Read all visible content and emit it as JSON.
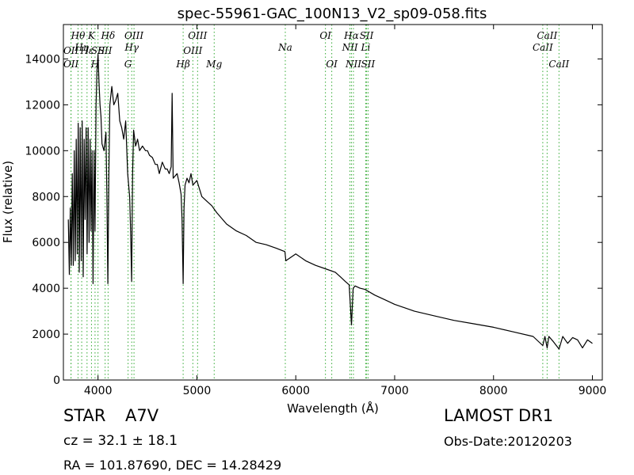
{
  "chart_data": {
    "type": "line",
    "title": "spec-55961-GAC_100N13_V2_sp09-058.fits",
    "xlabel": "Wavelength (Å)",
    "ylabel": "Flux (relative)",
    "xlim": [
      3650,
      9100
    ],
    "ylim": [
      0,
      15500
    ],
    "xticks": [
      4000,
      5000,
      6000,
      7000,
      8000,
      9000
    ],
    "yticks": [
      0,
      2000,
      4000,
      6000,
      8000,
      10000,
      12000,
      14000
    ],
    "grid": false,
    "line_color": "#000000",
    "marker_color": "#33aa33",
    "series": [
      {
        "x": [
          3700,
          3710,
          3720,
          3730,
          3740,
          3750,
          3760,
          3770,
          3780,
          3790,
          3800,
          3810,
          3820,
          3830,
          3840,
          3850,
          3860,
          3870,
          3880,
          3890,
          3900,
          3910,
          3920,
          3930,
          3940,
          3950,
          3960,
          3970,
          3980,
          3990,
          4000,
          4010,
          4020,
          4030,
          4040,
          4060,
          4080,
          4090,
          4100,
          4110,
          4120,
          4140,
          4160,
          4180,
          4200,
          4220,
          4240,
          4260,
          4280,
          4300,
          4320,
          4330,
          4340,
          4350,
          4360,
          4380,
          4400,
          4420,
          4450,
          4480,
          4500,
          4520,
          4550,
          4580,
          4600,
          4620,
          4650,
          4680,
          4700,
          4720,
          4740,
          4750,
          4760,
          4780,
          4800,
          4820,
          4840,
          4850,
          4861,
          4870,
          4880,
          4900,
          4920,
          4940,
          4960,
          5000,
          5050,
          5100,
          5150,
          5200,
          5300,
          5400,
          5500,
          5600,
          5700,
          5800,
          5890,
          5900,
          6000,
          6100,
          6200,
          6300,
          6400,
          6450,
          6500,
          6540,
          6563,
          6580,
          6600,
          6650,
          6700,
          6800,
          6900,
          7000,
          7200,
          7400,
          7600,
          7800,
          8000,
          8200,
          8400,
          8498,
          8520,
          8542,
          8560,
          8600,
          8662,
          8700,
          8750,
          8800,
          8850,
          8900,
          8950,
          9000
        ],
        "y": [
          7000,
          4600,
          7500,
          5000,
          9000,
          5000,
          10000,
          5200,
          10500,
          5500,
          11200,
          4700,
          11000,
          5200,
          11300,
          4500,
          10500,
          7000,
          11000,
          5500,
          11000,
          6000,
          10500,
          6500,
          10000,
          4200,
          10000,
          6500,
          12000,
          13500,
          14200,
          13000,
          12000,
          11500,
          10300,
          10000,
          10800,
          8000,
          4200,
          9000,
          12000,
          12800,
          12000,
          12200,
          12500,
          11300,
          11000,
          10500,
          11300,
          9000,
          8000,
          6500,
          4300,
          9000,
          10900,
          10200,
          10500,
          10000,
          10200,
          10000,
          10000,
          9800,
          9700,
          9400,
          9400,
          9000,
          9500,
          9200,
          9200,
          9000,
          9300,
          12500,
          8800,
          8900,
          9000,
          8600,
          8100,
          7000,
          4200,
          7500,
          8500,
          8800,
          8600,
          9000,
          8500,
          8700,
          8000,
          7800,
          7600,
          7300,
          6800,
          6500,
          6300,
          6000,
          5900,
          5750,
          5600,
          5200,
          5500,
          5200,
          5000,
          4850,
          4700,
          4500,
          4300,
          4150,
          2400,
          4000,
          4100,
          4000,
          3950,
          3700,
          3500,
          3300,
          3000,
          2800,
          2600,
          2450,
          2300,
          2100,
          1900,
          1500,
          1900,
          1400,
          1900,
          1700,
          1350,
          1900,
          1600,
          1850,
          1750,
          1400,
          1750,
          1600
        ]
      }
    ],
    "markers": [
      {
        "wl": 3727,
        "label": "OII",
        "row": 2
      },
      {
        "wl": 3727,
        "label": "OII",
        "row": 4
      },
      {
        "wl": 3798,
        "label": "Hθ",
        "row": 1
      },
      {
        "wl": 3835,
        "label": "Hη",
        "row": 3
      },
      {
        "wl": 3889,
        "label": "Hε",
        "row": 2
      },
      {
        "wl": 3934,
        "label": "K",
        "row": 1
      },
      {
        "wl": 3970,
        "label": "H",
        "row": 4
      },
      {
        "wl": 4000,
        "label": "SII",
        "row": 2
      },
      {
        "wl": 4072,
        "label": "SII",
        "row": 2
      },
      {
        "wl": 4102,
        "label": "Hδ",
        "row": 1
      },
      {
        "wl": 4304,
        "label": "G",
        "row": 4
      },
      {
        "wl": 4341,
        "label": "Hγ",
        "row": 3
      },
      {
        "wl": 4364,
        "label": "OIII",
        "row": 1
      },
      {
        "wl": 4861,
        "label": "Hβ",
        "row": 4
      },
      {
        "wl": 4959,
        "label": "OIII",
        "row": 2
      },
      {
        "wl": 5007,
        "label": "OIII",
        "row": 1
      },
      {
        "wl": 5175,
        "label": "Mg",
        "row": 4
      },
      {
        "wl": 5894,
        "label": "Na",
        "row": 3
      },
      {
        "wl": 6300,
        "label": "OI",
        "row": 1
      },
      {
        "wl": 6364,
        "label": "OI",
        "row": 4
      },
      {
        "wl": 6548,
        "label": "NII",
        "row": 3
      },
      {
        "wl": 6563,
        "label": "Hα",
        "row": 1
      },
      {
        "wl": 6583,
        "label": "NII",
        "row": 4
      },
      {
        "wl": 6707,
        "label": "Li",
        "row": 3
      },
      {
        "wl": 6716,
        "label": "SII",
        "row": 1
      },
      {
        "wl": 6731,
        "label": "SII",
        "row": 4
      },
      {
        "wl": 8498,
        "label": "CaII",
        "row": 3
      },
      {
        "wl": 8542,
        "label": "CaII",
        "row": 1
      },
      {
        "wl": 8662,
        "label": "CaII",
        "row": 4
      }
    ]
  },
  "info": {
    "class": "STAR",
    "subclass": "A7V",
    "survey": "LAMOST DR1",
    "cz": "cz = 32.1 ± 18.1",
    "obs_date": "Obs-Date:20120203",
    "coords": "RA = 101.87690, DEC = 14.28429"
  }
}
